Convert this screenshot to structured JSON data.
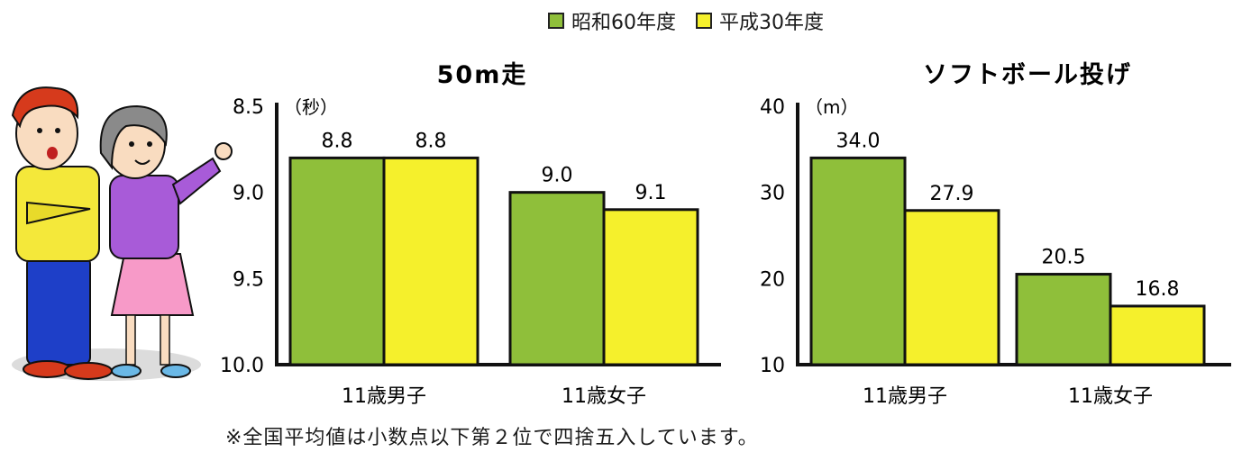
{
  "legend": {
    "items": [
      {
        "label": "昭和60年度",
        "color": "#8fbf3a"
      },
      {
        "label": "平成30年度",
        "color": "#f5f02c"
      }
    ]
  },
  "note": "※全国平均値は小数点以下第２位で四捨五入しています。",
  "chart_data": [
    {
      "type": "bar",
      "title": "50m走",
      "ylabel": "（秒）",
      "categories": [
        "11歳男子",
        "11歳女子"
      ],
      "yticks": [
        "8.5",
        "9.0",
        "9.5",
        "10.0"
      ],
      "ylim": [
        8.5,
        10.0
      ],
      "inverted": true,
      "series": [
        {
          "name": "昭和60年度",
          "values": [
            8.8,
            9.0
          ],
          "labels": [
            "8.8",
            "9.0"
          ]
        },
        {
          "name": "平成30年度",
          "values": [
            8.8,
            9.1
          ],
          "labels": [
            "8.8",
            "9.1"
          ]
        }
      ]
    },
    {
      "type": "bar",
      "title": "ソフトボール投げ",
      "ylabel": "（m）",
      "categories": [
        "11歳男子",
        "11歳女子"
      ],
      "yticks": [
        "40",
        "30",
        "20",
        "10"
      ],
      "ylim": [
        10,
        40
      ],
      "inverted": false,
      "series": [
        {
          "name": "昭和60年度",
          "values": [
            34.0,
            20.5
          ],
          "labels": [
            "34.0",
            "20.5"
          ]
        },
        {
          "name": "平成30年度",
          "values": [
            27.9,
            16.8
          ],
          "labels": [
            "27.9",
            "16.8"
          ]
        }
      ]
    }
  ]
}
